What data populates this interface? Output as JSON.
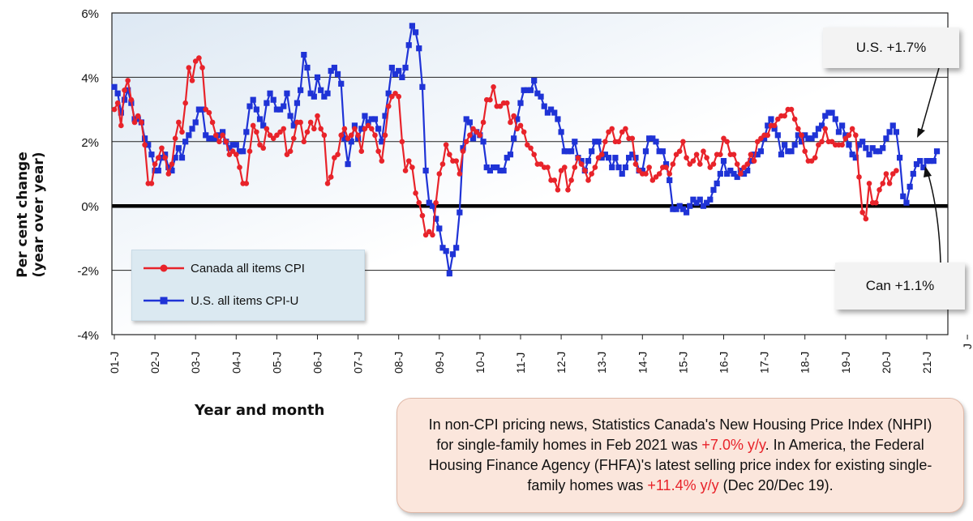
{
  "chart_data": {
    "type": "line",
    "title": "",
    "xlabel": "Year and month",
    "ylabel_lines": [
      "Per cent change",
      "(year over year)"
    ],
    "ylim": [
      -4,
      6
    ],
    "yticks": [
      -4,
      -2,
      0,
      2,
      4,
      6
    ],
    "ytick_labels": [
      "-4%",
      "-2%",
      "0%",
      "2%",
      "4%",
      "6%"
    ],
    "x_tick_labels": [
      "01-J",
      "02-J",
      "03-J",
      "04-J",
      "05-J",
      "06-J",
      "07-J",
      "08-J",
      "09-J",
      "10-J",
      "11-J",
      "12-J",
      "13-J",
      "14-J",
      "15-J",
      "16-J",
      "17-J",
      "18-J",
      "19-J",
      "20-J",
      "21-J"
    ],
    "x_start": "2001-01",
    "x_end": "2021-02",
    "series": [
      {
        "name": "Canada all items CPI",
        "color": "#e8232a",
        "marker": "circle",
        "values": [
          3.0,
          3.2,
          2.5,
          3.6,
          3.9,
          3.3,
          2.6,
          2.8,
          2.6,
          1.9,
          0.7,
          0.7,
          1.3,
          1.5,
          1.8,
          1.5,
          1.0,
          1.3,
          2.1,
          2.6,
          2.3,
          3.2,
          4.3,
          3.9,
          4.5,
          4.6,
          4.3,
          3.0,
          2.9,
          2.6,
          2.2,
          2.0,
          2.2,
          2.0,
          1.6,
          1.7,
          1.6,
          1.2,
          0.7,
          0.7,
          1.7,
          2.5,
          2.3,
          1.9,
          1.8,
          2.4,
          2.2,
          2.1,
          2.2,
          2.3,
          2.4,
          1.6,
          1.7,
          2.1,
          2.6,
          2.6,
          2.0,
          2.3,
          2.6,
          2.4,
          2.8,
          2.4,
          2.2,
          0.7,
          0.9,
          1.5,
          1.6,
          2.2,
          2.4,
          2.1,
          2.2,
          2.4,
          2.2,
          1.7,
          2.4,
          2.5,
          2.4,
          2.2,
          1.7,
          1.4,
          2.2,
          3.1,
          3.4,
          3.5,
          3.4,
          2.0,
          1.1,
          1.4,
          1.2,
          0.4,
          0.1,
          -0.3,
          -0.9,
          -0.8,
          -0.9,
          0.1,
          1.0,
          1.3,
          1.9,
          1.6,
          1.4,
          1.4,
          1.0,
          1.7,
          2.0,
          2.2,
          2.4,
          2.3,
          2.2,
          2.6,
          3.3,
          3.3,
          3.7,
          3.1,
          3.1,
          3.2,
          3.2,
          2.6,
          2.8,
          2.4,
          2.5,
          2.3,
          1.9,
          1.8,
          1.6,
          1.3,
          1.3,
          1.2,
          1.2,
          0.8,
          0.8,
          0.5,
          1.1,
          1.2,
          0.5,
          0.8,
          1.2,
          1.5,
          1.3,
          1.1,
          0.8,
          1.0,
          1.2,
          1.5,
          1.6,
          2.0,
          2.3,
          2.4,
          2.0,
          2.0,
          2.3,
          2.4,
          2.1,
          2.1,
          1.3,
          1.1,
          1.0,
          1.0,
          1.2,
          0.8,
          0.9,
          1.0,
          1.2,
          1.2,
          1.0,
          1.3,
          1.6,
          1.7,
          2.0,
          1.5,
          1.3,
          1.4,
          1.6,
          1.3,
          1.7,
          1.5,
          1.2,
          1.3,
          1.6,
          1.6,
          2.1,
          2.0,
          1.6,
          1.6,
          1.3,
          1.0,
          1.2,
          1.3,
          1.6,
          1.4,
          2.0,
          2.1,
          2.2,
          2.2,
          2.5,
          2.5,
          2.7,
          2.8,
          2.8,
          3.0,
          3.0,
          2.7,
          2.4,
          2.2,
          1.7,
          1.4,
          1.4,
          1.5,
          1.9,
          2.0,
          2.4,
          2.0,
          2.0,
          1.9,
          1.9,
          1.9,
          2.1,
          2.2,
          2.4,
          2.2,
          0.9,
          -0.2,
          -0.4,
          0.7,
          0.1,
          0.1,
          0.5,
          0.7,
          1.0,
          0.7,
          1.0,
          1.1
        ]
      },
      {
        "name": "U.S. all items CPI-U",
        "color": "#1f33d6",
        "marker": "square",
        "values": [
          3.7,
          3.5,
          2.9,
          3.3,
          3.6,
          3.2,
          2.7,
          2.7,
          2.6,
          2.1,
          1.9,
          1.6,
          1.1,
          1.1,
          1.5,
          1.6,
          1.2,
          1.1,
          1.5,
          1.8,
          1.5,
          2.0,
          2.2,
          2.4,
          2.6,
          3.0,
          3.0,
          2.2,
          2.1,
          2.1,
          2.1,
          2.2,
          2.3,
          2.0,
          1.8,
          1.9,
          1.9,
          1.7,
          1.7,
          2.3,
          3.1,
          3.3,
          3.0,
          2.7,
          2.5,
          3.2,
          3.5,
          3.3,
          3.0,
          3.0,
          3.1,
          3.5,
          2.8,
          2.5,
          3.2,
          3.6,
          4.7,
          4.3,
          3.5,
          3.4,
          4.0,
          3.6,
          3.4,
          3.5,
          4.2,
          4.3,
          4.1,
          3.8,
          2.1,
          1.3,
          2.0,
          2.5,
          2.1,
          2.4,
          2.8,
          2.6,
          2.7,
          2.7,
          2.4,
          2.0,
          2.8,
          3.5,
          4.3,
          4.1,
          4.2,
          4.0,
          4.3,
          5.0,
          5.6,
          5.4,
          4.9,
          3.7,
          1.1,
          0.1,
          0.0,
          -0.4,
          -0.7,
          -1.3,
          -1.4,
          -2.1,
          -1.5,
          -1.3,
          -0.2,
          1.8,
          2.7,
          2.6,
          2.1,
          2.3,
          2.2,
          2.0,
          1.2,
          1.1,
          1.2,
          1.2,
          1.1,
          1.1,
          1.5,
          1.6,
          2.1,
          2.7,
          3.2,
          3.6,
          3.6,
          3.6,
          3.9,
          3.5,
          3.4,
          3.1,
          2.9,
          3.0,
          2.9,
          2.7,
          2.3,
          1.7,
          1.7,
          1.7,
          2.0,
          1.5,
          1.4,
          1.1,
          1.4,
          1.7,
          2.0,
          2.0,
          1.5,
          1.6,
          1.5,
          1.2,
          1.5,
          1.2,
          1.0,
          1.2,
          1.5,
          1.6,
          1.5,
          1.1,
          1.1,
          1.7,
          2.1,
          2.1,
          2.0,
          1.7,
          1.7,
          1.3,
          0.8,
          -0.1,
          -0.1,
          0.0,
          -0.1,
          -0.2,
          0.0,
          0.2,
          0.1,
          0.2,
          0.0,
          0.1,
          0.2,
          0.5,
          0.7,
          1.0,
          1.4,
          1.0,
          1.1,
          1.0,
          0.9,
          1.1,
          1.0,
          1.1,
          1.4,
          1.6,
          1.6,
          1.7,
          2.1,
          2.5,
          2.7,
          2.4,
          2.2,
          1.6,
          1.9,
          1.7,
          1.7,
          1.9,
          2.2,
          2.0,
          2.2,
          2.1,
          2.1,
          2.2,
          2.4,
          2.5,
          2.8,
          2.9,
          2.9,
          2.7,
          2.3,
          2.5,
          2.2,
          1.9,
          1.6,
          1.5,
          1.9,
          2.0,
          1.8,
          1.6,
          1.8,
          1.7,
          1.7,
          1.8,
          2.1,
          2.3,
          2.5,
          2.3,
          1.5,
          0.3,
          0.1,
          0.6,
          1.0,
          1.3,
          1.4,
          1.2,
          1.4,
          1.4,
          1.4,
          1.7
        ]
      }
    ],
    "legend_position": "lower-left"
  },
  "annotations": {
    "us_callout": "U.S. +1.7%",
    "can_callout": "Can +1.1%"
  },
  "note": {
    "part1": "In non-CPI pricing news, Statistics Canada's New Housing Price Index (NHPI) for single-family homes in Feb 2021 was ",
    "hl1": "+7.0% y/y",
    "part2": ". In America, the Federal Housing Finance Agency (FHFA)'s latest selling price index for existing single-family homes was ",
    "hl2": "+11.4% y/y",
    "part3": " (Dec 20/Dec 19)."
  },
  "colors": {
    "canada": "#e8232a",
    "us": "#1f33d6",
    "highlight": "#e8232a",
    "note_bg": "#fbe6dc",
    "legend_bg": "#dbe9f1"
  }
}
